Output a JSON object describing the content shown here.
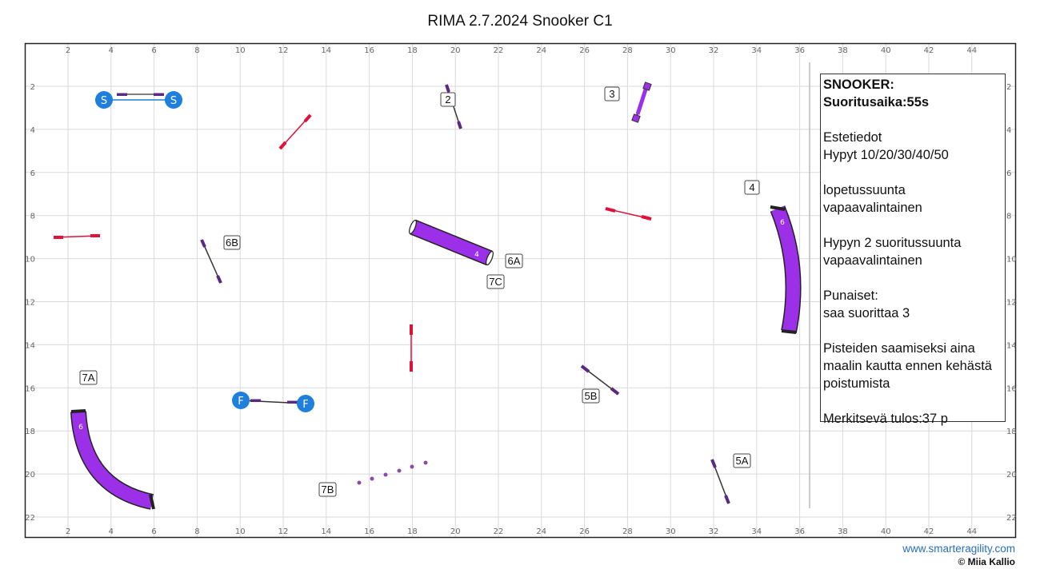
{
  "title": "RIMA 2.7.2024 Snooker C1",
  "axis": {
    "x_ticks": [
      "2",
      "4",
      "6",
      "8",
      "10",
      "12",
      "14",
      "16",
      "18",
      "20",
      "22",
      "24",
      "26",
      "28",
      "30",
      "32",
      "34",
      "36",
      "38",
      "40",
      "42",
      "44"
    ],
    "y_ticks": [
      "2",
      "4",
      "6",
      "8",
      "10",
      "12",
      "14",
      "16",
      "18",
      "20",
      "22"
    ]
  },
  "obstacle_labels": {
    "n2": "2",
    "n3": "3",
    "n4": "4",
    "n5A": "5A",
    "n5B": "5B",
    "n6A": "6A",
    "n6B": "6B",
    "n7A": "7A",
    "n7B": "7B",
    "n7C": "7C"
  },
  "tunnel_numbers": {
    "straight": "4",
    "curve_right": "6",
    "curve_left": "6"
  },
  "start_finish": {
    "start": "S",
    "finish": "F"
  },
  "info": {
    "heading": "SNOOKER:",
    "time": "Suoritusaika:55s",
    "line1": "Estetiedot",
    "line2": "Hypyt 10/20/30/40/50",
    "line3": "lopetussuunta",
    "line4": "vapaavalintainen",
    "line5": "Hypyn 2 suoritussuunta",
    "line6": "vapaavalintainen",
    "line7": "Punaiset:",
    "line8": "saa suorittaa 3",
    "line9": "Pisteiden saamiseksi aina",
    "line10": "maalin kautta ennen kehästä",
    "line11": "poistumista",
    "result": "Merkitsevä tulos:37 p"
  },
  "footer": {
    "website": "www.smarteragility.com",
    "copyright": "© Miia Kallio"
  },
  "colors": {
    "tunnel": "#9b30e8",
    "red_jump": "#e0103a",
    "jump_bar": "#5a2a82",
    "start_finish": "#1f7fdc",
    "weave_pole": "#8a4ca8"
  }
}
